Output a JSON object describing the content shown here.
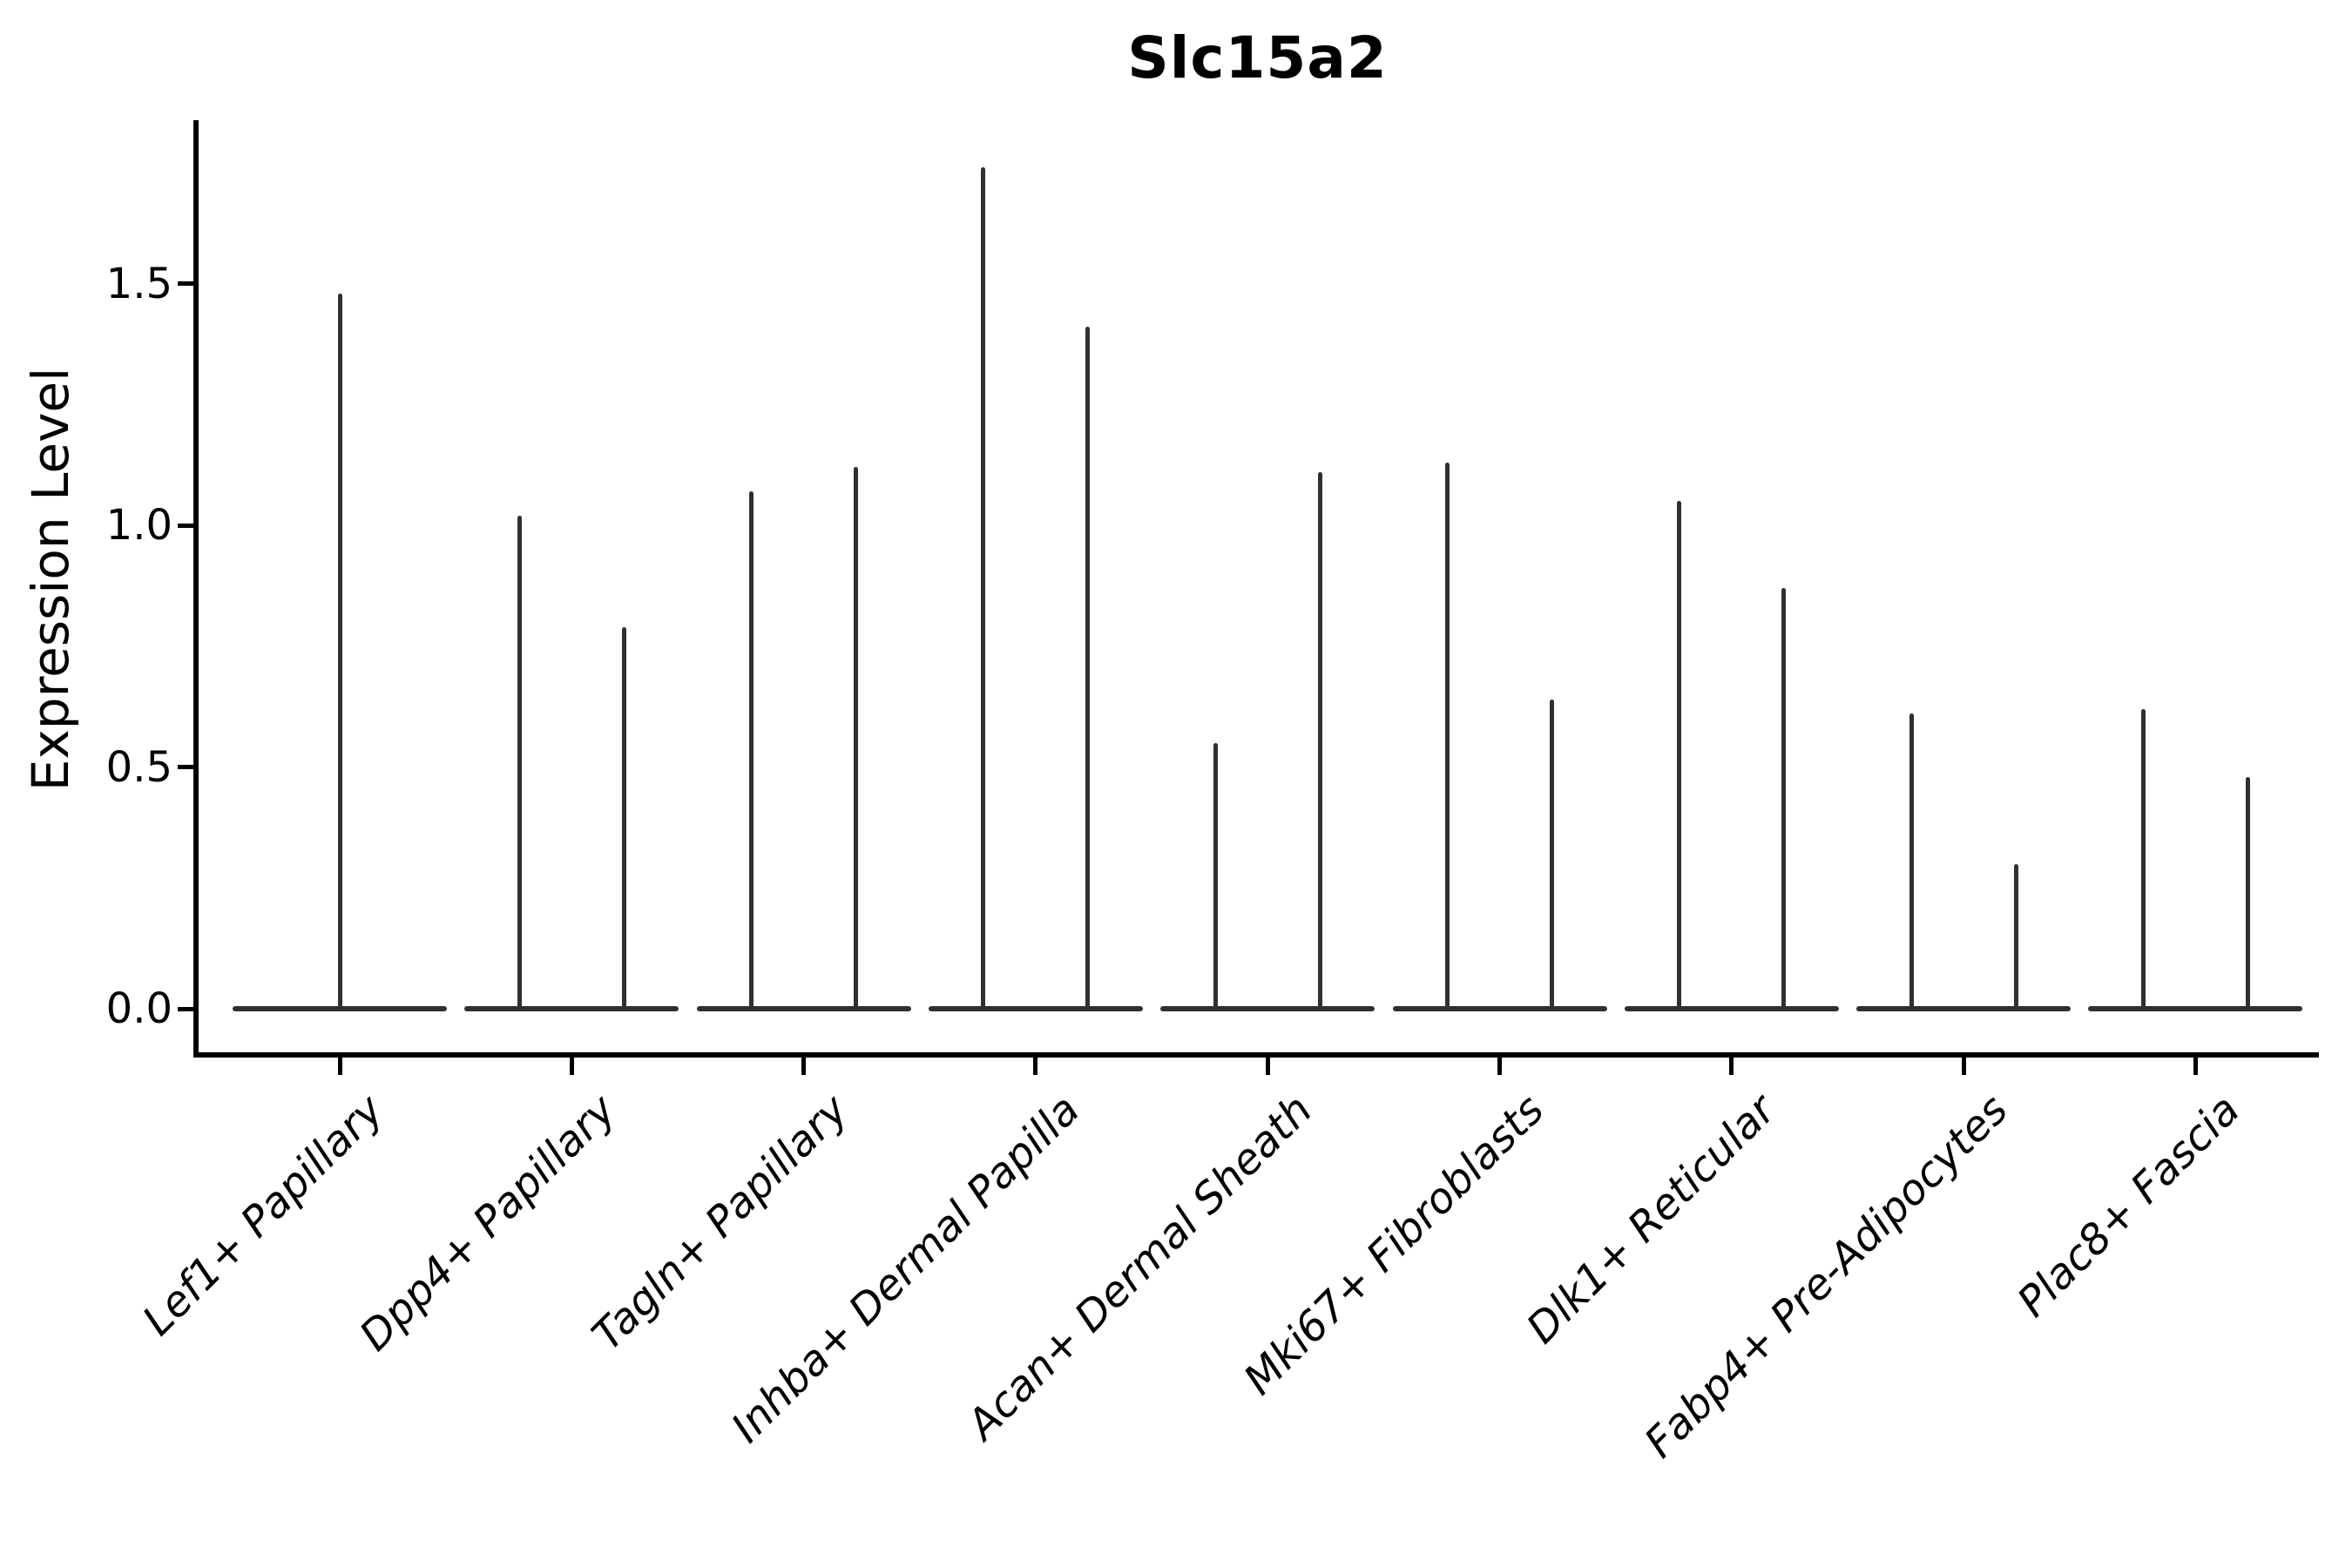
{
  "chart_data": {
    "type": "violin",
    "title": "Slc15a2",
    "ylabel": "Expression Level",
    "xlabel": "",
    "grid": false,
    "legend": "none",
    "ink_color": "#303030",
    "axis_color": "#000000",
    "ylim": [
      -0.09,
      1.85
    ],
    "yticks": [
      {
        "value": 0.0,
        "label": "0.0"
      },
      {
        "value": 0.5,
        "label": "0.5"
      },
      {
        "value": 1.0,
        "label": "1.0"
      },
      {
        "value": 1.5,
        "label": "1.5"
      }
    ],
    "categories": [
      "Lef1+ Papillary",
      "Dpp4+ Papillary",
      "Tagln+ Papillary",
      "Inhba+ Dermal Papilla",
      "Acan+ Dermal Sheath",
      "Mki67+ Fibroblasts",
      "Dlk1+ Reticular",
      "Fabp4+ Pre-Adipocytes",
      "Plac8+ Fascia"
    ],
    "series": [
      {
        "category": "Lef1+ Papillary",
        "baseline_value": 0,
        "spike_max_values": [
          1.48
        ]
      },
      {
        "category": "Dpp4+ Papillary",
        "baseline_value": 0,
        "spike_max_values": [
          1.02,
          0.79
        ]
      },
      {
        "category": "Tagln+ Papillary",
        "baseline_value": 0,
        "spike_max_values": [
          1.07,
          1.12
        ]
      },
      {
        "category": "Inhba+ Dermal Papilla",
        "baseline_value": 0,
        "spike_max_values": [
          1.74,
          1.41
        ]
      },
      {
        "category": "Acan+ Dermal Sheath",
        "baseline_value": 0,
        "spike_max_values": [
          0.55,
          1.11
        ]
      },
      {
        "category": "Mki67+ Fibroblasts",
        "baseline_value": 0,
        "spike_max_values": [
          1.13,
          0.64
        ]
      },
      {
        "category": "Dlk1+ Reticular",
        "baseline_value": 0,
        "spike_max_values": [
          1.05,
          0.87
        ]
      },
      {
        "category": "Fabp4+ Pre-Adipocytes",
        "baseline_value": 0,
        "spike_max_values": [
          0.61,
          0.3
        ]
      },
      {
        "category": "Plac8+ Fascia",
        "baseline_value": 0,
        "spike_max_values": [
          0.62,
          0.48
        ]
      }
    ]
  }
}
